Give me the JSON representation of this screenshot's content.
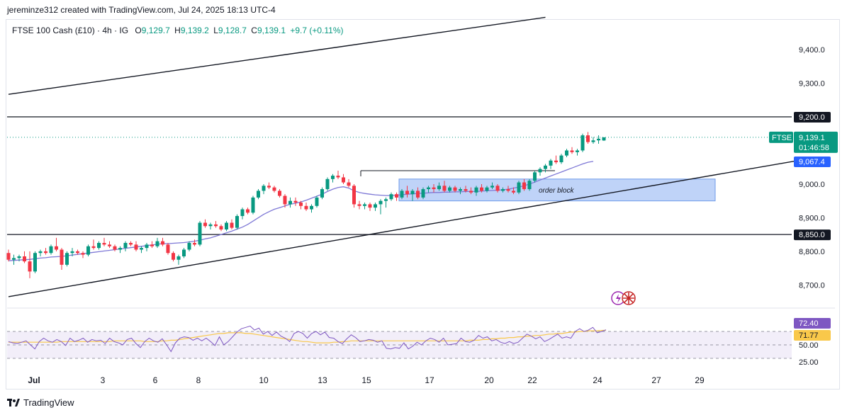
{
  "credit": "jereminze312 created with TradingView.com, Jul 24, 2025 18:13 UTC-4",
  "legend": {
    "symbol": "FTSE 100 Cash (£10) · 4h · IG",
    "o_label": "O",
    "o_value": "9,129.7",
    "h_label": "H",
    "h_value": "9,139.2",
    "l_label": "L",
    "l_value": "9,128.7",
    "c_label": "C",
    "c_value": "9,139.1",
    "change": "+9.7 (+0.11%)"
  },
  "footer": {
    "brand": "TradingView"
  },
  "colors": {
    "up": "#089981",
    "down": "#f23645",
    "ema": "#7e78d6",
    "rsi": "#7e57c2",
    "rsi_ma": "#f9c84a",
    "rsi_band": "#ede7f6",
    "order_block": "#a9c4f5",
    "price_tag": "#089981",
    "ema_tag": "#2962ff"
  },
  "chart_data": {
    "type": "candlestick",
    "title": "FTSE 100 Cash (£10) · 4h · IG",
    "y_axis": {
      "ticks": [
        "9,400.0",
        "9,300.0",
        "9,200.0",
        "9,000.0",
        "8,900.0",
        "8,800.0",
        "8,700.0"
      ],
      "ylim": [
        8650,
        9470
      ]
    },
    "x_axis": {
      "ticks": [
        "Jul",
        "3",
        "6",
        "8",
        "10",
        "13",
        "15",
        "17",
        "20",
        "22",
        "24",
        "27",
        "29"
      ]
    },
    "price_labels": {
      "resistance": "9,200.0",
      "support": "8,850.0",
      "last_symbol": "FTSE",
      "last_price": "9,139.1",
      "countdown": "01:46:58",
      "ema": "9,067.4"
    },
    "levels": {
      "resistance": 9200,
      "support": 8850,
      "last": 9139.1,
      "swing_high": 9040
    },
    "annotation": "order block",
    "order_block": {
      "top": 9015,
      "bottom": 8950,
      "from": "Jul 16",
      "to": "Jul 29"
    },
    "ohlc": [
      [
        8795,
        8805,
        8770,
        8775
      ],
      [
        8775,
        8790,
        8760,
        8780
      ],
      [
        8780,
        8790,
        8770,
        8785
      ],
      [
        8785,
        8800,
        8765,
        8770
      ],
      [
        8770,
        8800,
        8720,
        8740
      ],
      [
        8740,
        8800,
        8735,
        8795
      ],
      [
        8795,
        8805,
        8785,
        8800
      ],
      [
        8800,
        8810,
        8790,
        8795
      ],
      [
        8795,
        8820,
        8790,
        8815
      ],
      [
        8815,
        8840,
        8800,
        8805
      ],
      [
        8805,
        8810,
        8745,
        8760
      ],
      [
        8760,
        8800,
        8755,
        8795
      ],
      [
        8795,
        8810,
        8785,
        8800
      ],
      [
        8800,
        8805,
        8790,
        8795
      ],
      [
        8795,
        8800,
        8780,
        8790
      ],
      [
        8790,
        8820,
        8785,
        8815
      ],
      [
        8815,
        8835,
        8805,
        8810
      ],
      [
        8810,
        8830,
        8805,
        8825
      ],
      [
        8825,
        8840,
        8815,
        8820
      ],
      [
        8820,
        8830,
        8810,
        8815
      ],
      [
        8815,
        8820,
        8800,
        8805
      ],
      [
        8805,
        8815,
        8795,
        8810
      ],
      [
        8810,
        8830,
        8800,
        8825
      ],
      [
        8825,
        8830,
        8815,
        8820
      ],
      [
        8820,
        8830,
        8800,
        8805
      ],
      [
        8805,
        8815,
        8795,
        8810
      ],
      [
        8810,
        8825,
        8800,
        8820
      ],
      [
        8820,
        8830,
        8810,
        8815
      ],
      [
        8815,
        8840,
        8810,
        8830
      ],
      [
        8830,
        8840,
        8815,
        8820
      ],
      [
        8820,
        8825,
        8790,
        8795
      ],
      [
        8795,
        8800,
        8770,
        8775
      ],
      [
        8775,
        8790,
        8760,
        8785
      ],
      [
        8785,
        8810,
        8780,
        8805
      ],
      [
        8805,
        8830,
        8800,
        8825
      ],
      [
        8825,
        8835,
        8815,
        8820
      ],
      [
        8820,
        8890,
        8815,
        8885
      ],
      [
        8885,
        8895,
        8870,
        8875
      ],
      [
        8875,
        8885,
        8865,
        8880
      ],
      [
        8880,
        8890,
        8870,
        8875
      ],
      [
        8875,
        8880,
        8860,
        8865
      ],
      [
        8865,
        8890,
        8860,
        8885
      ],
      [
        8885,
        8895,
        8865,
        8870
      ],
      [
        8870,
        8910,
        8865,
        8905
      ],
      [
        8905,
        8930,
        8895,
        8925
      ],
      [
        8925,
        8930,
        8910,
        8915
      ],
      [
        8915,
        8965,
        8910,
        8960
      ],
      [
        8960,
        8985,
        8955,
        8980
      ],
      [
        8980,
        9000,
        8970,
        8995
      ],
      [
        8995,
        9005,
        8985,
        8990
      ],
      [
        8990,
        8995,
        8975,
        8980
      ],
      [
        8980,
        8985,
        8960,
        8965
      ],
      [
        8965,
        8970,
        8930,
        8940
      ],
      [
        8940,
        8960,
        8930,
        8950
      ],
      [
        8950,
        8960,
        8935,
        8945
      ],
      [
        8945,
        8950,
        8925,
        8935
      ],
      [
        8935,
        8945,
        8920,
        8925
      ],
      [
        8925,
        8940,
        8915,
        8935
      ],
      [
        8935,
        8965,
        8930,
        8960
      ],
      [
        8960,
        8990,
        8955,
        8985
      ],
      [
        8985,
        9020,
        8980,
        9015
      ],
      [
        9015,
        9030,
        9005,
        9025
      ],
      [
        9025,
        9040,
        9015,
        9020
      ],
      [
        9020,
        9030,
        9000,
        9005
      ],
      [
        9005,
        9015,
        8990,
        8995
      ],
      [
        8995,
        9000,
        8930,
        8940
      ],
      [
        8940,
        8950,
        8925,
        8935
      ],
      [
        8935,
        8945,
        8925,
        8940
      ],
      [
        8940,
        8945,
        8920,
        8930
      ],
      [
        8930,
        8945,
        8920,
        8940
      ],
      [
        8940,
        8955,
        8910,
        8950
      ],
      [
        8950,
        8960,
        8930,
        8955
      ],
      [
        8955,
        8975,
        8950,
        8970
      ],
      [
        8970,
        8975,
        8950,
        8960
      ],
      [
        8960,
        8985,
        8955,
        8980
      ],
      [
        8980,
        8995,
        8960,
        8970
      ],
      [
        8970,
        8985,
        8950,
        8980
      ],
      [
        8980,
        8990,
        8955,
        8960
      ],
      [
        8960,
        8990,
        8955,
        8985
      ],
      [
        8985,
        8995,
        8975,
        8990
      ],
      [
        8990,
        9000,
        8975,
        8985
      ],
      [
        8985,
        9005,
        8980,
        8995
      ],
      [
        8995,
        9010,
        8975,
        8980
      ],
      [
        8980,
        8995,
        8975,
        8990
      ],
      [
        8990,
        8995,
        8975,
        8980
      ],
      [
        8980,
        8990,
        8970,
        8985
      ],
      [
        8985,
        8995,
        8975,
        8980
      ],
      [
        8980,
        8990,
        8970,
        8975
      ],
      [
        8975,
        8995,
        8965,
        8990
      ],
      [
        8990,
        9000,
        8975,
        8980
      ],
      [
        8980,
        8995,
        8975,
        8990
      ],
      [
        8990,
        9005,
        8985,
        8995
      ],
      [
        8995,
        9000,
        8975,
        8980
      ],
      [
        8980,
        8990,
        8975,
        8985
      ],
      [
        8985,
        8995,
        8975,
        8980
      ],
      [
        8980,
        8990,
        8970,
        8975
      ],
      [
        8975,
        9010,
        8970,
        9005
      ],
      [
        9005,
        9015,
        8980,
        8985
      ],
      [
        8985,
        9015,
        8980,
        9010
      ],
      [
        9010,
        9040,
        9005,
        9035
      ],
      [
        9035,
        9050,
        9025,
        9045
      ],
      [
        9045,
        9060,
        9035,
        9055
      ],
      [
        9055,
        9075,
        9045,
        9070
      ],
      [
        9070,
        9085,
        9060,
        9065
      ],
      [
        9065,
        9090,
        9060,
        9085
      ],
      [
        9085,
        9105,
        9080,
        9100
      ],
      [
        9100,
        9110,
        9090,
        9095
      ],
      [
        9095,
        9105,
        9085,
        9100
      ],
      [
        9100,
        9150,
        9095,
        9145
      ],
      [
        9145,
        9155,
        9120,
        9125
      ],
      [
        9125,
        9140,
        9120,
        9130
      ],
      [
        9130,
        9145,
        9120,
        9135
      ],
      [
        9129.7,
        9139.2,
        9128.7,
        9139.1
      ]
    ],
    "ema_series": {
      "start_index": 0,
      "values": [
        8772,
        8773,
        8774,
        8775,
        8776,
        8778,
        8780,
        8781,
        8783,
        8784,
        8785,
        8787,
        8789,
        8791,
        8793,
        8795,
        8797,
        8799,
        8801,
        8803,
        8805,
        8807,
        8809,
        8811,
        8813,
        8815,
        8817,
        8819,
        8821,
        8823,
        8823,
        8824,
        8825,
        8826,
        8828,
        8830,
        8833,
        8837,
        8840,
        8845,
        8850,
        8855,
        8860,
        8866,
        8872,
        8880,
        8890,
        8900,
        8910,
        8918,
        8925,
        8930,
        8935,
        8940,
        8943,
        8947,
        8952,
        8958,
        8964,
        8970,
        8978,
        8985,
        8990,
        8992,
        8988,
        8980,
        8975,
        8972,
        8970,
        8968,
        8967,
        8966,
        8966,
        8967,
        8968,
        8970,
        8971,
        8972,
        8973,
        8974,
        8975,
        8975,
        8976,
        8976,
        8977,
        8977,
        8978,
        8978,
        8978,
        8979,
        8980,
        8981,
        8982,
        8983,
        8985,
        8988,
        8991,
        8995,
        9000,
        9006,
        9012,
        9018,
        9024,
        9030,
        9036,
        9042,
        9048,
        9054,
        9060,
        9065,
        9067.4
      ]
    },
    "channel": {
      "upper": [
        [
          0,
          9267
        ],
        [
          101,
          9496
        ]
      ],
      "lower": [
        [
          0,
          8665
        ],
        [
          150,
          9074
        ]
      ]
    },
    "rsi": {
      "labels": [
        "72.40",
        "71.77"
      ],
      "ticks": [
        "50.00",
        "25.00"
      ],
      "band": [
        30,
        70
      ],
      "ylim": [
        20,
        80
      ],
      "values": [
        55,
        53,
        52,
        54,
        56,
        50,
        44,
        55,
        60,
        56,
        54,
        58,
        55,
        49,
        60,
        55,
        57,
        60,
        54,
        58,
        56,
        57,
        52,
        60,
        55,
        53,
        50,
        58,
        60,
        52,
        46,
        55,
        60,
        56,
        54,
        59,
        50,
        40,
        53,
        60,
        62,
        61,
        57,
        60,
        56,
        60,
        55,
        49,
        62,
        50,
        55,
        62,
        69,
        74,
        76,
        78,
        72,
        75,
        66,
        70,
        64,
        69,
        63,
        60,
        55,
        67,
        70,
        67,
        60,
        67,
        70,
        65,
        69,
        61,
        60,
        55,
        52,
        59,
        65,
        61,
        55,
        56,
        58,
        57,
        54,
        56,
        45,
        44,
        46,
        45,
        53,
        44,
        48,
        54,
        50,
        56,
        60,
        58,
        54,
        60,
        50,
        51,
        52,
        60,
        55,
        54,
        57,
        64,
        60,
        62,
        56,
        58,
        54,
        52,
        55,
        52,
        54,
        60,
        66,
        63,
        59,
        62,
        55,
        58,
        62,
        66,
        60,
        62,
        60,
        70,
        74,
        70,
        72,
        76,
        68,
        70,
        72.4
      ],
      "ma": [
        54,
        54,
        54,
        54,
        54,
        54,
        54,
        54,
        54,
        54,
        54,
        54,
        55,
        55,
        55,
        55,
        55,
        55,
        55,
        55,
        55,
        55,
        55,
        55,
        56,
        56,
        56,
        56,
        56,
        56,
        56,
        55,
        55,
        55,
        55,
        56,
        56,
        57,
        57,
        58,
        59,
        60,
        61,
        62,
        63,
        64,
        65,
        66,
        67,
        67,
        68,
        68,
        68,
        68,
        67,
        67,
        66,
        65,
        64,
        63,
        62,
        61,
        60,
        59,
        58,
        57,
        56,
        55,
        55,
        54,
        53,
        53,
        53,
        53,
        54,
        54,
        55,
        55,
        56,
        56,
        56,
        56,
        56,
        56,
        56,
        56,
        56,
        56,
        56,
        56,
        56,
        56,
        56,
        56,
        56,
        56,
        56,
        56,
        56,
        56,
        56,
        56,
        56,
        56,
        56,
        57,
        57,
        57,
        58,
        58,
        59,
        59,
        60,
        60,
        61,
        61,
        62,
        62,
        63,
        63,
        64,
        64,
        65,
        66,
        66,
        67,
        67,
        68,
        69,
        69,
        70,
        70,
        71,
        71,
        71,
        71.5,
        71.77
      ]
    }
  }
}
